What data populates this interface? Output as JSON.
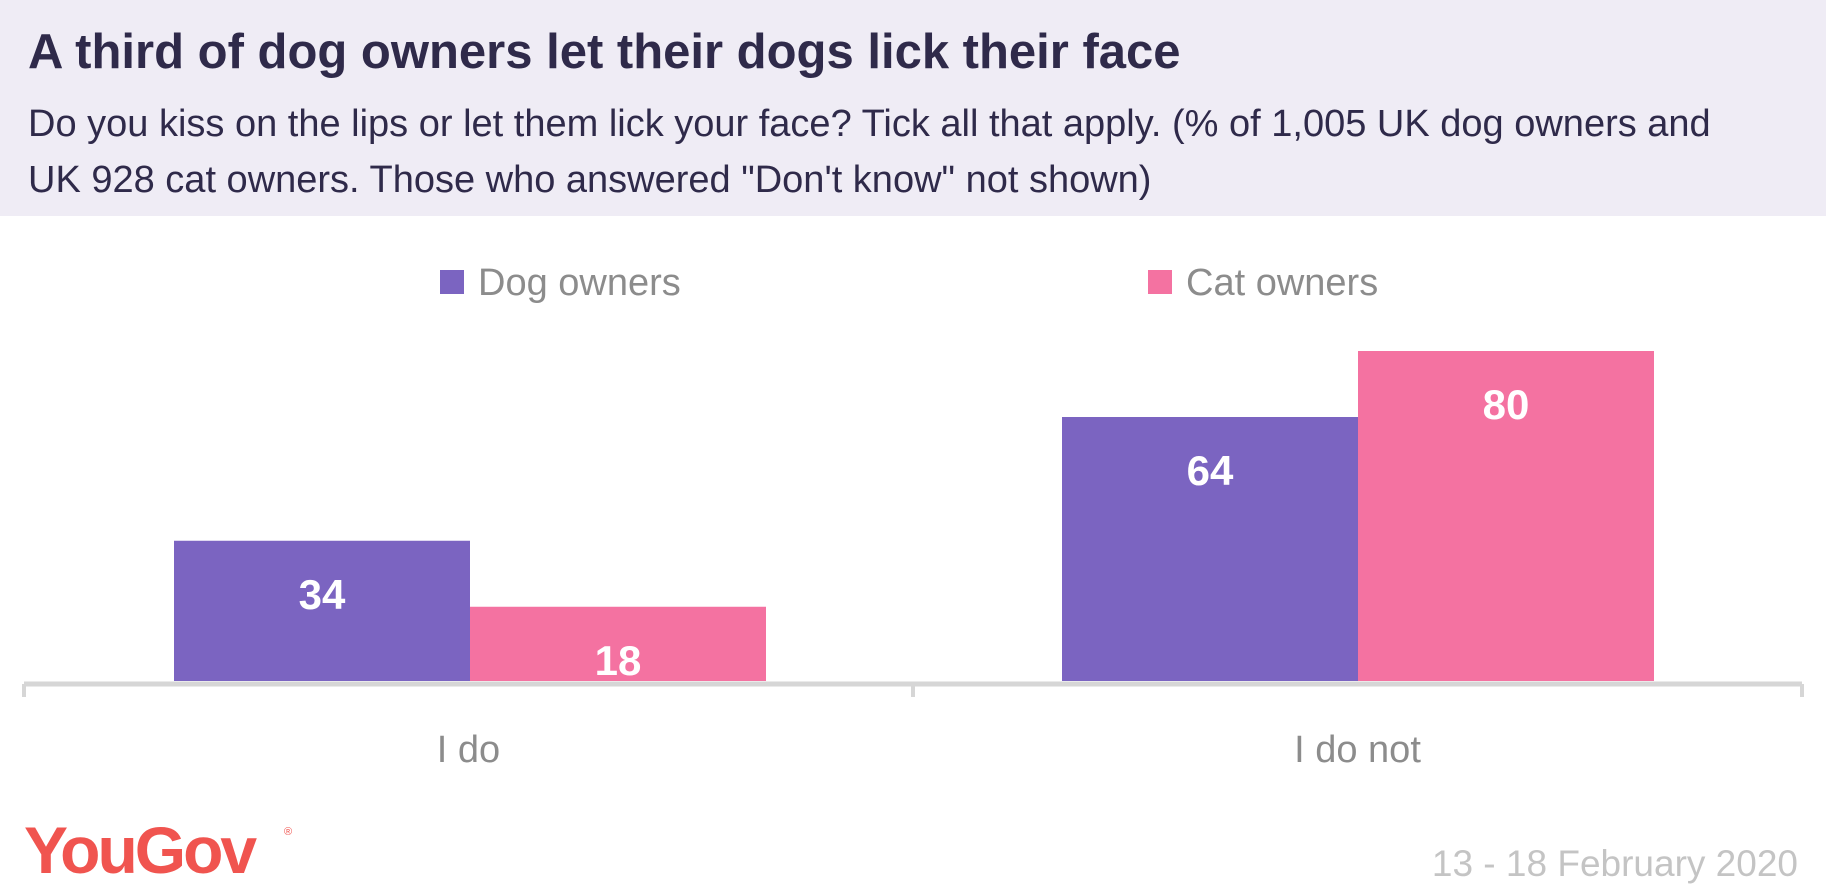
{
  "header": {
    "title": "A third of dog owners let their dogs lick their face",
    "subtitle": "Do you kiss on the lips or let them lick your face? Tick all that apply. (% of 1,005 UK dog owners and UK 928 cat owners. Those who answered \"Don't know\" not shown)"
  },
  "chart_data": {
    "type": "bar",
    "categories": [
      "I do",
      "I do not"
    ],
    "series": [
      {
        "name": "Dog owners",
        "color": "#7b64c1",
        "values": [
          34,
          64
        ]
      },
      {
        "name": "Cat owners",
        "color": "#f472a1",
        "values": [
          18,
          80
        ]
      }
    ],
    "ylim": [
      0,
      80
    ],
    "legend": "top-center",
    "grid": false,
    "data_labels": true
  },
  "footer": {
    "brand": "YouGov",
    "brand_mark": "®",
    "date": "13 - 18 February 2020"
  }
}
